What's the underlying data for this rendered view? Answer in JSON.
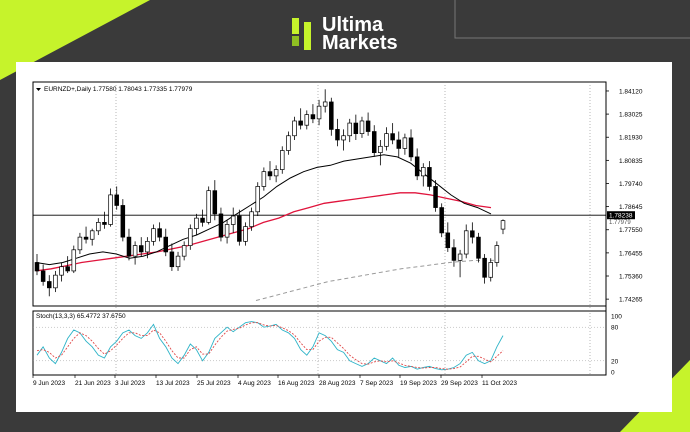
{
  "brand": {
    "name_line1": "Ultima",
    "name_line2": "Markets"
  },
  "colors": {
    "background": "#3a3a3a",
    "accent_green": "#c6f32b",
    "sma_black": "#000000",
    "sma_red": "#e0143c",
    "sma_long_dashed": "#9a9a9a",
    "stoch_main": "#2fb4c8",
    "stoch_signal": "#e04a4a"
  },
  "chart_data": {
    "type": "candlestick",
    "header": "EURNZD+,Daily  1.77580 1.78043 1.77335 1.77979",
    "price_axis_ticks": [
      "1.84120",
      "1.83025",
      "1.81930",
      "1.80835",
      "1.79740",
      "1.78645",
      "1.77550",
      "1.76455",
      "1.75360",
      "1.74265"
    ],
    "price_range": [
      1.7394,
      1.8445
    ],
    "last_price_labels": [
      "1.78238",
      "1.77979"
    ],
    "date_labels": [
      "9 Jun 2023",
      "21 Jun 2023",
      "3 Jul 2023",
      "13 Jul 2023",
      "25 Jul 2023",
      "4 Aug 2023",
      "16 Aug 2023",
      "28 Aug 2023",
      "7 Sep 2023",
      "19 Sep 2023",
      "29 Sep 2023",
      "11 Oct 2023"
    ],
    "candles": [
      [
        1.76,
        1.764,
        1.754,
        1.756
      ],
      [
        1.756,
        1.759,
        1.749,
        1.751
      ],
      [
        1.751,
        1.754,
        1.744,
        1.748
      ],
      [
        1.748,
        1.756,
        1.746,
        1.754
      ],
      [
        1.754,
        1.76,
        1.751,
        1.758
      ],
      [
        1.758,
        1.763,
        1.755,
        1.756
      ],
      [
        1.756,
        1.768,
        1.755,
        1.766
      ],
      [
        1.766,
        1.774,
        1.764,
        1.772
      ],
      [
        1.772,
        1.777,
        1.769,
        1.771
      ],
      [
        1.771,
        1.776,
        1.768,
        1.775
      ],
      [
        1.775,
        1.781,
        1.773,
        1.779
      ],
      [
        1.779,
        1.784,
        1.776,
        1.778
      ],
      [
        1.778,
        1.795,
        1.777,
        1.792
      ],
      [
        1.792,
        1.796,
        1.785,
        1.787
      ],
      [
        1.787,
        1.79,
        1.77,
        1.772
      ],
      [
        1.772,
        1.776,
        1.761,
        1.763
      ],
      [
        1.763,
        1.77,
        1.759,
        1.768
      ],
      [
        1.768,
        1.772,
        1.763,
        1.765
      ],
      [
        1.765,
        1.772,
        1.762,
        1.77
      ],
      [
        1.77,
        1.778,
        1.768,
        1.776
      ],
      [
        1.776,
        1.779,
        1.77,
        1.772
      ],
      [
        1.772,
        1.776,
        1.763,
        1.765
      ],
      [
        1.765,
        1.769,
        1.756,
        1.758
      ],
      [
        1.758,
        1.765,
        1.756,
        1.763
      ],
      [
        1.763,
        1.77,
        1.761,
        1.768
      ],
      [
        1.768,
        1.778,
        1.766,
        1.776
      ],
      [
        1.776,
        1.783,
        1.773,
        1.781
      ],
      [
        1.781,
        1.785,
        1.777,
        1.779
      ],
      [
        1.779,
        1.796,
        1.778,
        1.794
      ],
      [
        1.794,
        1.799,
        1.78,
        1.783
      ],
      [
        1.783,
        1.786,
        1.77,
        1.772
      ],
      [
        1.772,
        1.78,
        1.769,
        1.778
      ],
      [
        1.778,
        1.786,
        1.774,
        1.782
      ],
      [
        1.782,
        1.785,
        1.768,
        1.77
      ],
      [
        1.77,
        1.779,
        1.768,
        1.777
      ],
      [
        1.777,
        1.786,
        1.775,
        1.784
      ],
      [
        1.784,
        1.798,
        1.782,
        1.796
      ],
      [
        1.796,
        1.805,
        1.794,
        1.803
      ],
      [
        1.803,
        1.808,
        1.799,
        1.801
      ],
      [
        1.801,
        1.806,
        1.798,
        1.804
      ],
      [
        1.804,
        1.815,
        1.802,
        1.813
      ],
      [
        1.813,
        1.822,
        1.811,
        1.82
      ],
      [
        1.82,
        1.829,
        1.818,
        1.827
      ],
      [
        1.827,
        1.833,
        1.823,
        1.825
      ],
      [
        1.825,
        1.832,
        1.823,
        1.83
      ],
      [
        1.83,
        1.835,
        1.826,
        1.828
      ],
      [
        1.828,
        1.837,
        1.825,
        1.834
      ],
      [
        1.834,
        1.842,
        1.831,
        1.836
      ],
      [
        1.836,
        1.838,
        1.82,
        1.823
      ],
      [
        1.823,
        1.828,
        1.815,
        1.818
      ],
      [
        1.818,
        1.823,
        1.813,
        1.82
      ],
      [
        1.82,
        1.828,
        1.817,
        1.826
      ],
      [
        1.826,
        1.83,
        1.818,
        1.821
      ],
      [
        1.821,
        1.829,
        1.819,
        1.827
      ],
      [
        1.827,
        1.831,
        1.82,
        1.822
      ],
      [
        1.822,
        1.825,
        1.81,
        1.812
      ],
      [
        1.812,
        1.818,
        1.806,
        1.815
      ],
      [
        1.815,
        1.824,
        1.813,
        1.821
      ],
      [
        1.821,
        1.826,
        1.816,
        1.818
      ],
      [
        1.818,
        1.822,
        1.81,
        1.814
      ],
      [
        1.814,
        1.821,
        1.811,
        1.819
      ],
      [
        1.819,
        1.823,
        1.808,
        1.81
      ],
      [
        1.81,
        1.814,
        1.799,
        1.801
      ],
      [
        1.801,
        1.807,
        1.796,
        1.805
      ],
      [
        1.805,
        1.808,
        1.794,
        1.796
      ],
      [
        1.796,
        1.799,
        1.784,
        1.786
      ],
      [
        1.786,
        1.788,
        1.772,
        1.774
      ],
      [
        1.774,
        1.779,
        1.765,
        1.767
      ],
      [
        1.767,
        1.771,
        1.758,
        1.761
      ],
      [
        1.761,
        1.766,
        1.753,
        1.764
      ],
      [
        1.764,
        1.778,
        1.762,
        1.775
      ],
      [
        1.775,
        1.779,
        1.769,
        1.772
      ],
      [
        1.772,
        1.774,
        1.76,
        1.762
      ],
      [
        1.762,
        1.764,
        1.75,
        1.753
      ],
      [
        1.753,
        1.762,
        1.751,
        1.76
      ],
      [
        1.76,
        1.77,
        1.758,
        1.768
      ],
      [
        1.7758,
        1.7804,
        1.7734,
        1.7798
      ]
    ],
    "sma_short_y": [
      1.76,
      1.759,
      1.76,
      1.762,
      1.764,
      1.765,
      1.764,
      1.762,
      1.763,
      1.765,
      1.768,
      1.771,
      1.773,
      1.776,
      1.779,
      1.783,
      1.787,
      1.791,
      1.796,
      1.8,
      1.803,
      1.805,
      1.806,
      1.808,
      1.809,
      1.81,
      1.811,
      1.81,
      1.807,
      1.802,
      1.797,
      1.792,
      1.788,
      1.786,
      1.783
    ],
    "sma_mid_y": [
      1.756,
      1.757,
      1.7585,
      1.76,
      1.761,
      1.762,
      1.763,
      1.764,
      1.765,
      1.7665,
      1.768,
      1.77,
      1.772,
      1.774,
      1.776,
      1.779,
      1.781,
      1.784,
      1.786,
      1.788,
      1.789,
      1.79,
      1.791,
      1.792,
      1.793,
      1.793,
      1.792,
      1.7905,
      1.789,
      1.787,
      1.786
    ],
    "sma_long_y": [
      1.742,
      1.745,
      1.748,
      1.751,
      1.753,
      1.755,
      1.757,
      1.7585,
      1.76,
      1.761,
      1.761
    ],
    "stochastic": {
      "label": "Stoch(13,3,3) 65.4772 37.6750",
      "axis_ticks": [
        "100",
        "80",
        "20",
        "0"
      ],
      "main": [
        30,
        45,
        25,
        15,
        35,
        60,
        75,
        70,
        55,
        45,
        30,
        25,
        45,
        55,
        70,
        75,
        65,
        60,
        70,
        85,
        60,
        45,
        25,
        15,
        30,
        50,
        40,
        20,
        35,
        60,
        70,
        80,
        72,
        80,
        88,
        90,
        88,
        80,
        82,
        85,
        75,
        70,
        60,
        40,
        30,
        45,
        70,
        65,
        55,
        40,
        35,
        20,
        15,
        10,
        15,
        25,
        20,
        15,
        25,
        12,
        8,
        10,
        5,
        8,
        10,
        6,
        4,
        5,
        8,
        15,
        30,
        35,
        20,
        15,
        20,
        45,
        65
      ],
      "signal": [
        38,
        40,
        35,
        25,
        30,
        45,
        60,
        70,
        65,
        55,
        42,
        32,
        38,
        48,
        60,
        70,
        70,
        65,
        65,
        75,
        70,
        55,
        38,
        25,
        25,
        40,
        45,
        32,
        32,
        48,
        62,
        73,
        76,
        78,
        84,
        88,
        88,
        84,
        82,
        83,
        79,
        74,
        66,
        52,
        40,
        40,
        55,
        62,
        62,
        52,
        42,
        30,
        22,
        15,
        14,
        18,
        20,
        18,
        20,
        16,
        12,
        10,
        8,
        7,
        8,
        8,
        6,
        5,
        6,
        9,
        18,
        28,
        28,
        23,
        18,
        28,
        38
      ]
    }
  }
}
